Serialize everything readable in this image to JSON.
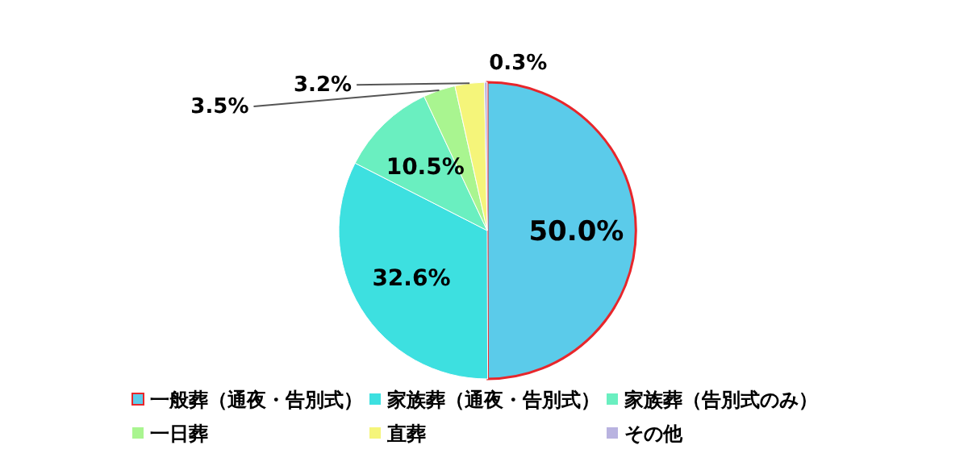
{
  "chart_data": {
    "type": "pie",
    "categories": [
      "一般葬（通夜・告別式）",
      "家族葬（通夜・告別式）",
      "家族葬（告別式のみ）",
      "一日葬",
      "直葬",
      "その他"
    ],
    "values": [
      50.0,
      32.6,
      10.5,
      3.5,
      3.2,
      0.3
    ],
    "value_labels": [
      "50.0%",
      "32.6%",
      "10.5%",
      "3.5%",
      "3.2%",
      "0.3%"
    ],
    "colors": [
      "#5bcbea",
      "#3de0e0",
      "#6aefc0",
      "#a9f590",
      "#f5f57a",
      "#b9b3e0"
    ],
    "legend": "bottom"
  }
}
